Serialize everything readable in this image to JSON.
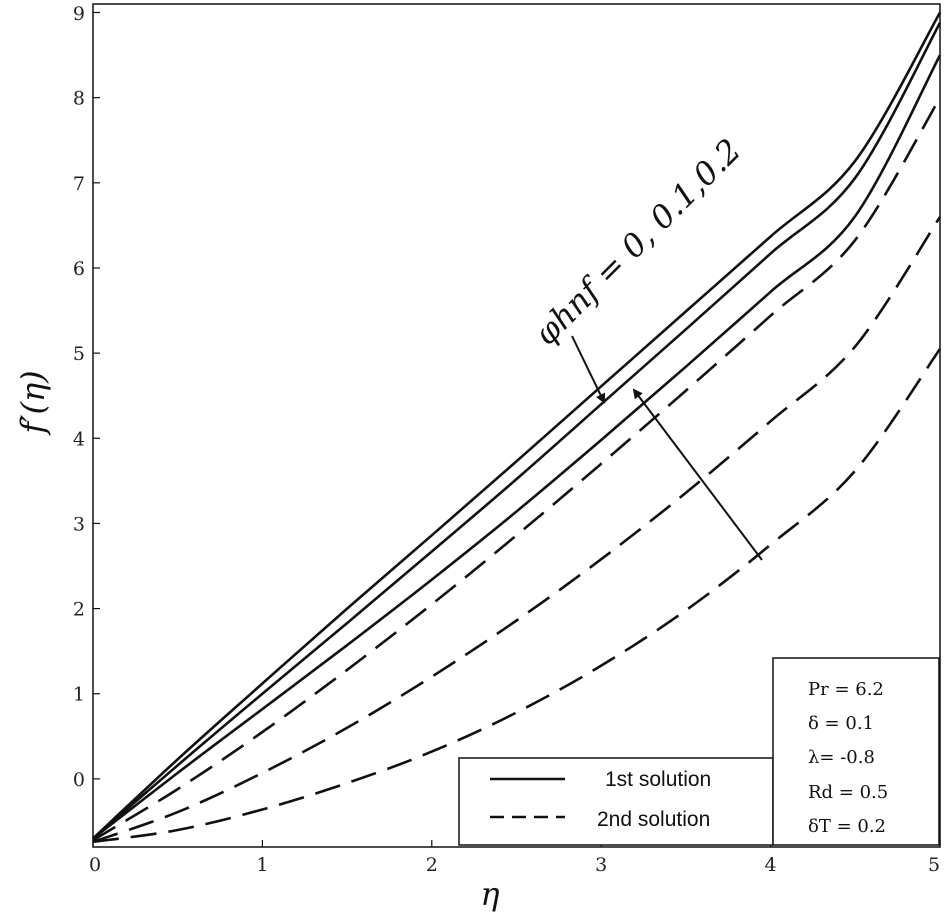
{
  "chart_data": {
    "type": "line",
    "xlabel": "η",
    "ylabel": "f′(η)",
    "xlim": [
      0,
      5
    ],
    "ylim": [
      -0.8,
      9.1
    ],
    "xticks": [
      0,
      1,
      2,
      3,
      4,
      5
    ],
    "yticks": [
      0,
      1,
      2,
      3,
      4,
      5,
      6,
      7,
      8,
      9
    ],
    "grid": false,
    "legend_position": "bottom-center",
    "legend": [
      {
        "label": "1st solution",
        "style": "solid"
      },
      {
        "label": "2nd solution",
        "style": "dashed"
      }
    ],
    "parameters": [
      "Pr = 6.2",
      "δ = 0.1",
      "λ=  -0.8",
      "Rd = 0.5",
      "δT = 0.2"
    ],
    "annotation": "φhnf = 0, 0.1,0.2",
    "series": [
      {
        "style": "solid",
        "x": [
          0,
          0.5,
          1,
          1.5,
          2,
          2.5,
          3,
          3.5,
          4,
          4.5,
          5
        ],
        "y": [
          -0.7,
          0.23,
          1.12,
          2.0,
          2.86,
          3.73,
          4.61,
          5.49,
          6.37,
          7.26,
          9.0
        ]
      },
      {
        "style": "solid",
        "x": [
          0,
          0.5,
          1,
          1.5,
          2,
          2.5,
          3,
          3.5,
          4,
          4.5,
          5
        ],
        "y": [
          -0.7,
          0.16,
          1.0,
          1.83,
          2.67,
          3.52,
          4.4,
          5.28,
          6.17,
          7.06,
          8.88
        ]
      },
      {
        "style": "solid",
        "x": [
          0,
          0.5,
          1,
          1.5,
          2,
          2.5,
          3,
          3.5,
          4,
          4.5,
          5
        ],
        "y": [
          -0.7,
          0.07,
          0.82,
          1.57,
          2.34,
          3.14,
          3.98,
          4.84,
          5.72,
          6.61,
          8.5
        ]
      },
      {
        "style": "dashed",
        "x": [
          0,
          0.5,
          1,
          1.5,
          2,
          2.5,
          3,
          3.5,
          4,
          4.5,
          5
        ],
        "y": [
          -0.72,
          -0.12,
          0.55,
          1.28,
          2.05,
          2.86,
          3.7,
          4.56,
          5.44,
          6.33,
          8.0
        ]
      },
      {
        "style": "dashed",
        "x": [
          0,
          0.5,
          1,
          1.5,
          2,
          2.5,
          3,
          3.5,
          4,
          4.5,
          5
        ],
        "y": [
          -0.74,
          -0.39,
          0.07,
          0.6,
          1.2,
          1.86,
          2.58,
          3.36,
          4.2,
          5.08,
          6.6
        ]
      },
      {
        "style": "dashed",
        "x": [
          0,
          0.5,
          1,
          1.5,
          2,
          2.5,
          3,
          3.5,
          4,
          4.5,
          5
        ],
        "y": [
          -0.74,
          -0.6,
          -0.36,
          -0.05,
          0.32,
          0.78,
          1.33,
          1.98,
          2.75,
          3.62,
          5.05
        ]
      }
    ]
  }
}
